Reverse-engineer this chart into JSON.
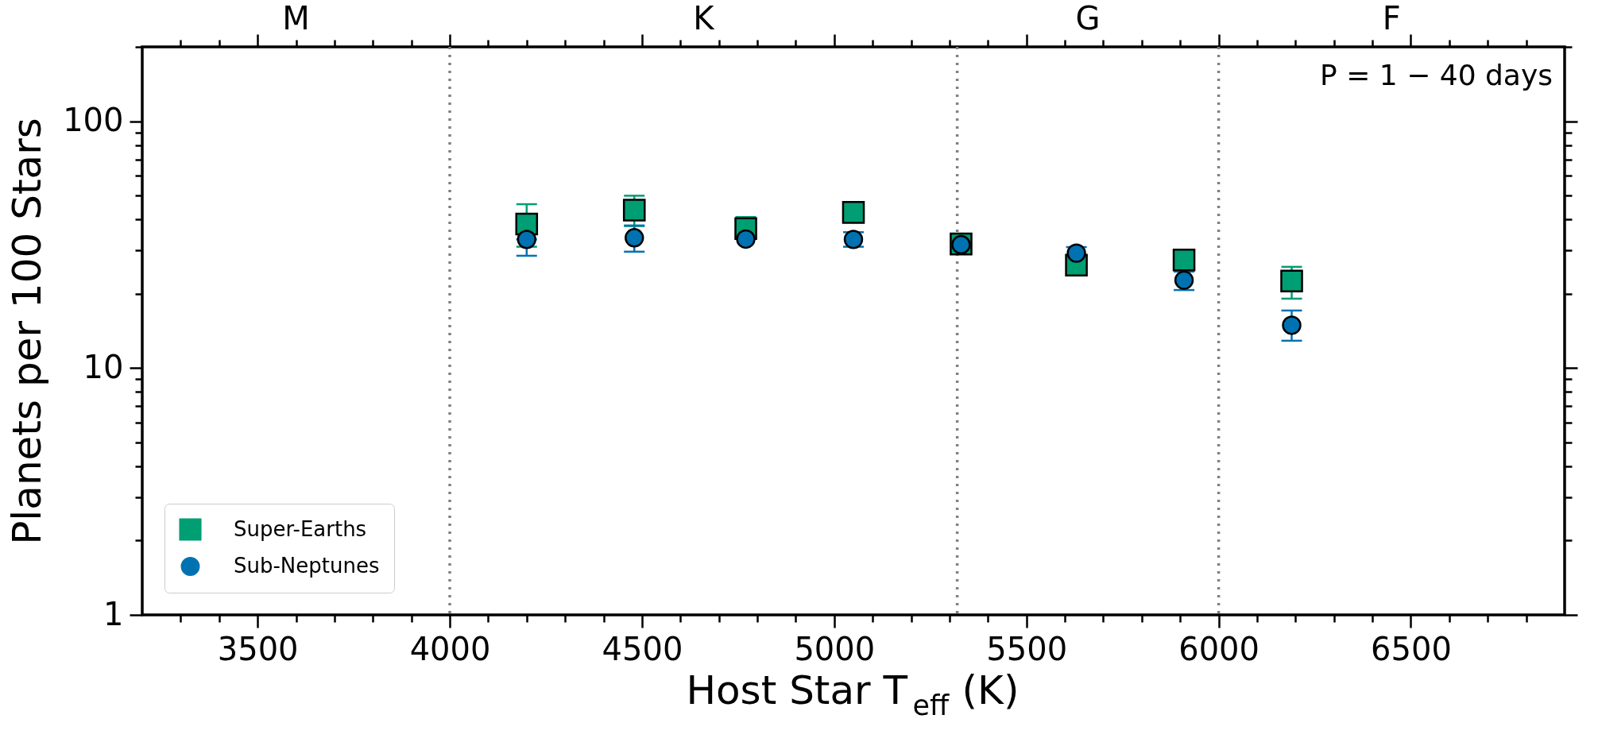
{
  "chart_data": {
    "type": "scatter",
    "xlabel": "Host Star T$_{eff}$ (K)",
    "ylabel": "Planets per 100 Stars",
    "log": "y",
    "xlim": [
      3200,
      6900
    ],
    "ylim": [
      1,
      200
    ],
    "xticks": [
      {
        "value": 3300,
        "label": null
      },
      {
        "value": 3400,
        "label": null
      },
      3500,
      {
        "value": 3600,
        "label": null
      },
      {
        "value": 3700,
        "label": null
      },
      {
        "value": 3800,
        "label": null
      },
      {
        "value": 3900,
        "label": null
      },
      4000,
      {
        "value": 4100,
        "label": null
      },
      {
        "value": 4200,
        "label": null
      },
      {
        "value": 4300,
        "label": null
      },
      {
        "value": 4400,
        "label": null
      },
      4500,
      {
        "value": 4600,
        "label": null
      },
      {
        "value": 4700,
        "label": null
      },
      {
        "value": 4800,
        "label": null
      },
      {
        "value": 4900,
        "label": null
      },
      5000,
      {
        "value": 5100,
        "label": null
      },
      {
        "value": 5200,
        "label": null
      },
      {
        "value": 5300,
        "label": null
      },
      {
        "value": 5400,
        "label": null
      },
      5500,
      {
        "value": 5600,
        "label": null
      },
      {
        "value": 5700,
        "label": null
      },
      {
        "value": 5800,
        "label": null
      },
      {
        "value": 5900,
        "label": null
      },
      6000,
      {
        "value": 6100,
        "label": null
      },
      {
        "value": 6200,
        "label": null
      },
      {
        "value": 6300,
        "label": null
      },
      {
        "value": 6400,
        "label": null
      },
      6500,
      {
        "value": 6600,
        "label": null
      },
      {
        "value": 6700,
        "label": null
      },
      {
        "value": 6800,
        "label": null
      }
    ],
    "yticks": [
      1,
      {
        "value": 2,
        "label": null
      },
      {
        "value": 3,
        "label": null
      },
      {
        "value": 4,
        "label": null
      },
      {
        "value": 5,
        "label": null
      },
      {
        "value": 6,
        "label": null
      },
      {
        "value": 7,
        "label": null
      },
      {
        "value": 8,
        "label": null
      },
      {
        "value": 9,
        "label": null
      },
      10,
      {
        "value": 20,
        "label": null
      },
      {
        "value": 30,
        "label": null
      },
      {
        "value": 40,
        "label": null
      },
      {
        "value": 50,
        "label": null
      },
      {
        "value": 60,
        "label": null
      },
      {
        "value": 70,
        "label": null
      },
      {
        "value": 80,
        "label": null
      },
      {
        "value": 90,
        "label": null
      },
      100,
      {
        "value": 200,
        "label": null
      }
    ],
    "legend": "bottom left",
    "grid": false,
    "annotations": [
      "P = 1 − 40 days",
      "M",
      "K",
      "G",
      "F"
    ],
    "ref_lines": [
      {
        "axis": "x",
        "value": 4000,
        "color": "#808080",
        "line_style": "dotted"
      },
      {
        "axis": "x",
        "value": 5320,
        "color": "#808080",
        "line_style": "dotted"
      },
      {
        "axis": "x",
        "value": 6000,
        "color": "#808080",
        "line_style": "dotted"
      }
    ],
    "x": [
      4200,
      4480,
      4770,
      5050,
      5330,
      5630,
      5910,
      6190
    ],
    "series": [
      {
        "name": "Super-Earths",
        "color": "#009e73",
        "marker": "square",
        "values": [
          38.3,
          43.6,
          36.7,
          42.7,
          31.8,
          26.1,
          27.4,
          22.5
        ],
        "errors": [
          [
            31.0,
            46.1
          ],
          [
            37.6,
            49.9
          ],
          [
            36.7,
            40.9
          ],
          [
            39.2,
            46.0
          ],
          null,
          [
            24.2,
            26.1
          ],
          [
            24.6,
            30.0
          ],
          [
            19.1,
            25.7
          ]
        ]
      },
      {
        "name": "Sub-Neptunes",
        "color": "#0072b2",
        "marker": "circle",
        "values": [
          33.2,
          33.7,
          33.3,
          33.2,
          31.6,
          29.2,
          22.7,
          14.9
        ],
        "errors": [
          [
            28.5,
            33.2
          ],
          [
            29.6,
            37.8
          ],
          null,
          [
            31.0,
            35.5
          ],
          [
            30.0,
            33.5
          ],
          [
            27.5,
            30.9
          ],
          [
            20.7,
            24.6
          ],
          [
            12.9,
            17.1
          ]
        ]
      }
    ]
  }
}
